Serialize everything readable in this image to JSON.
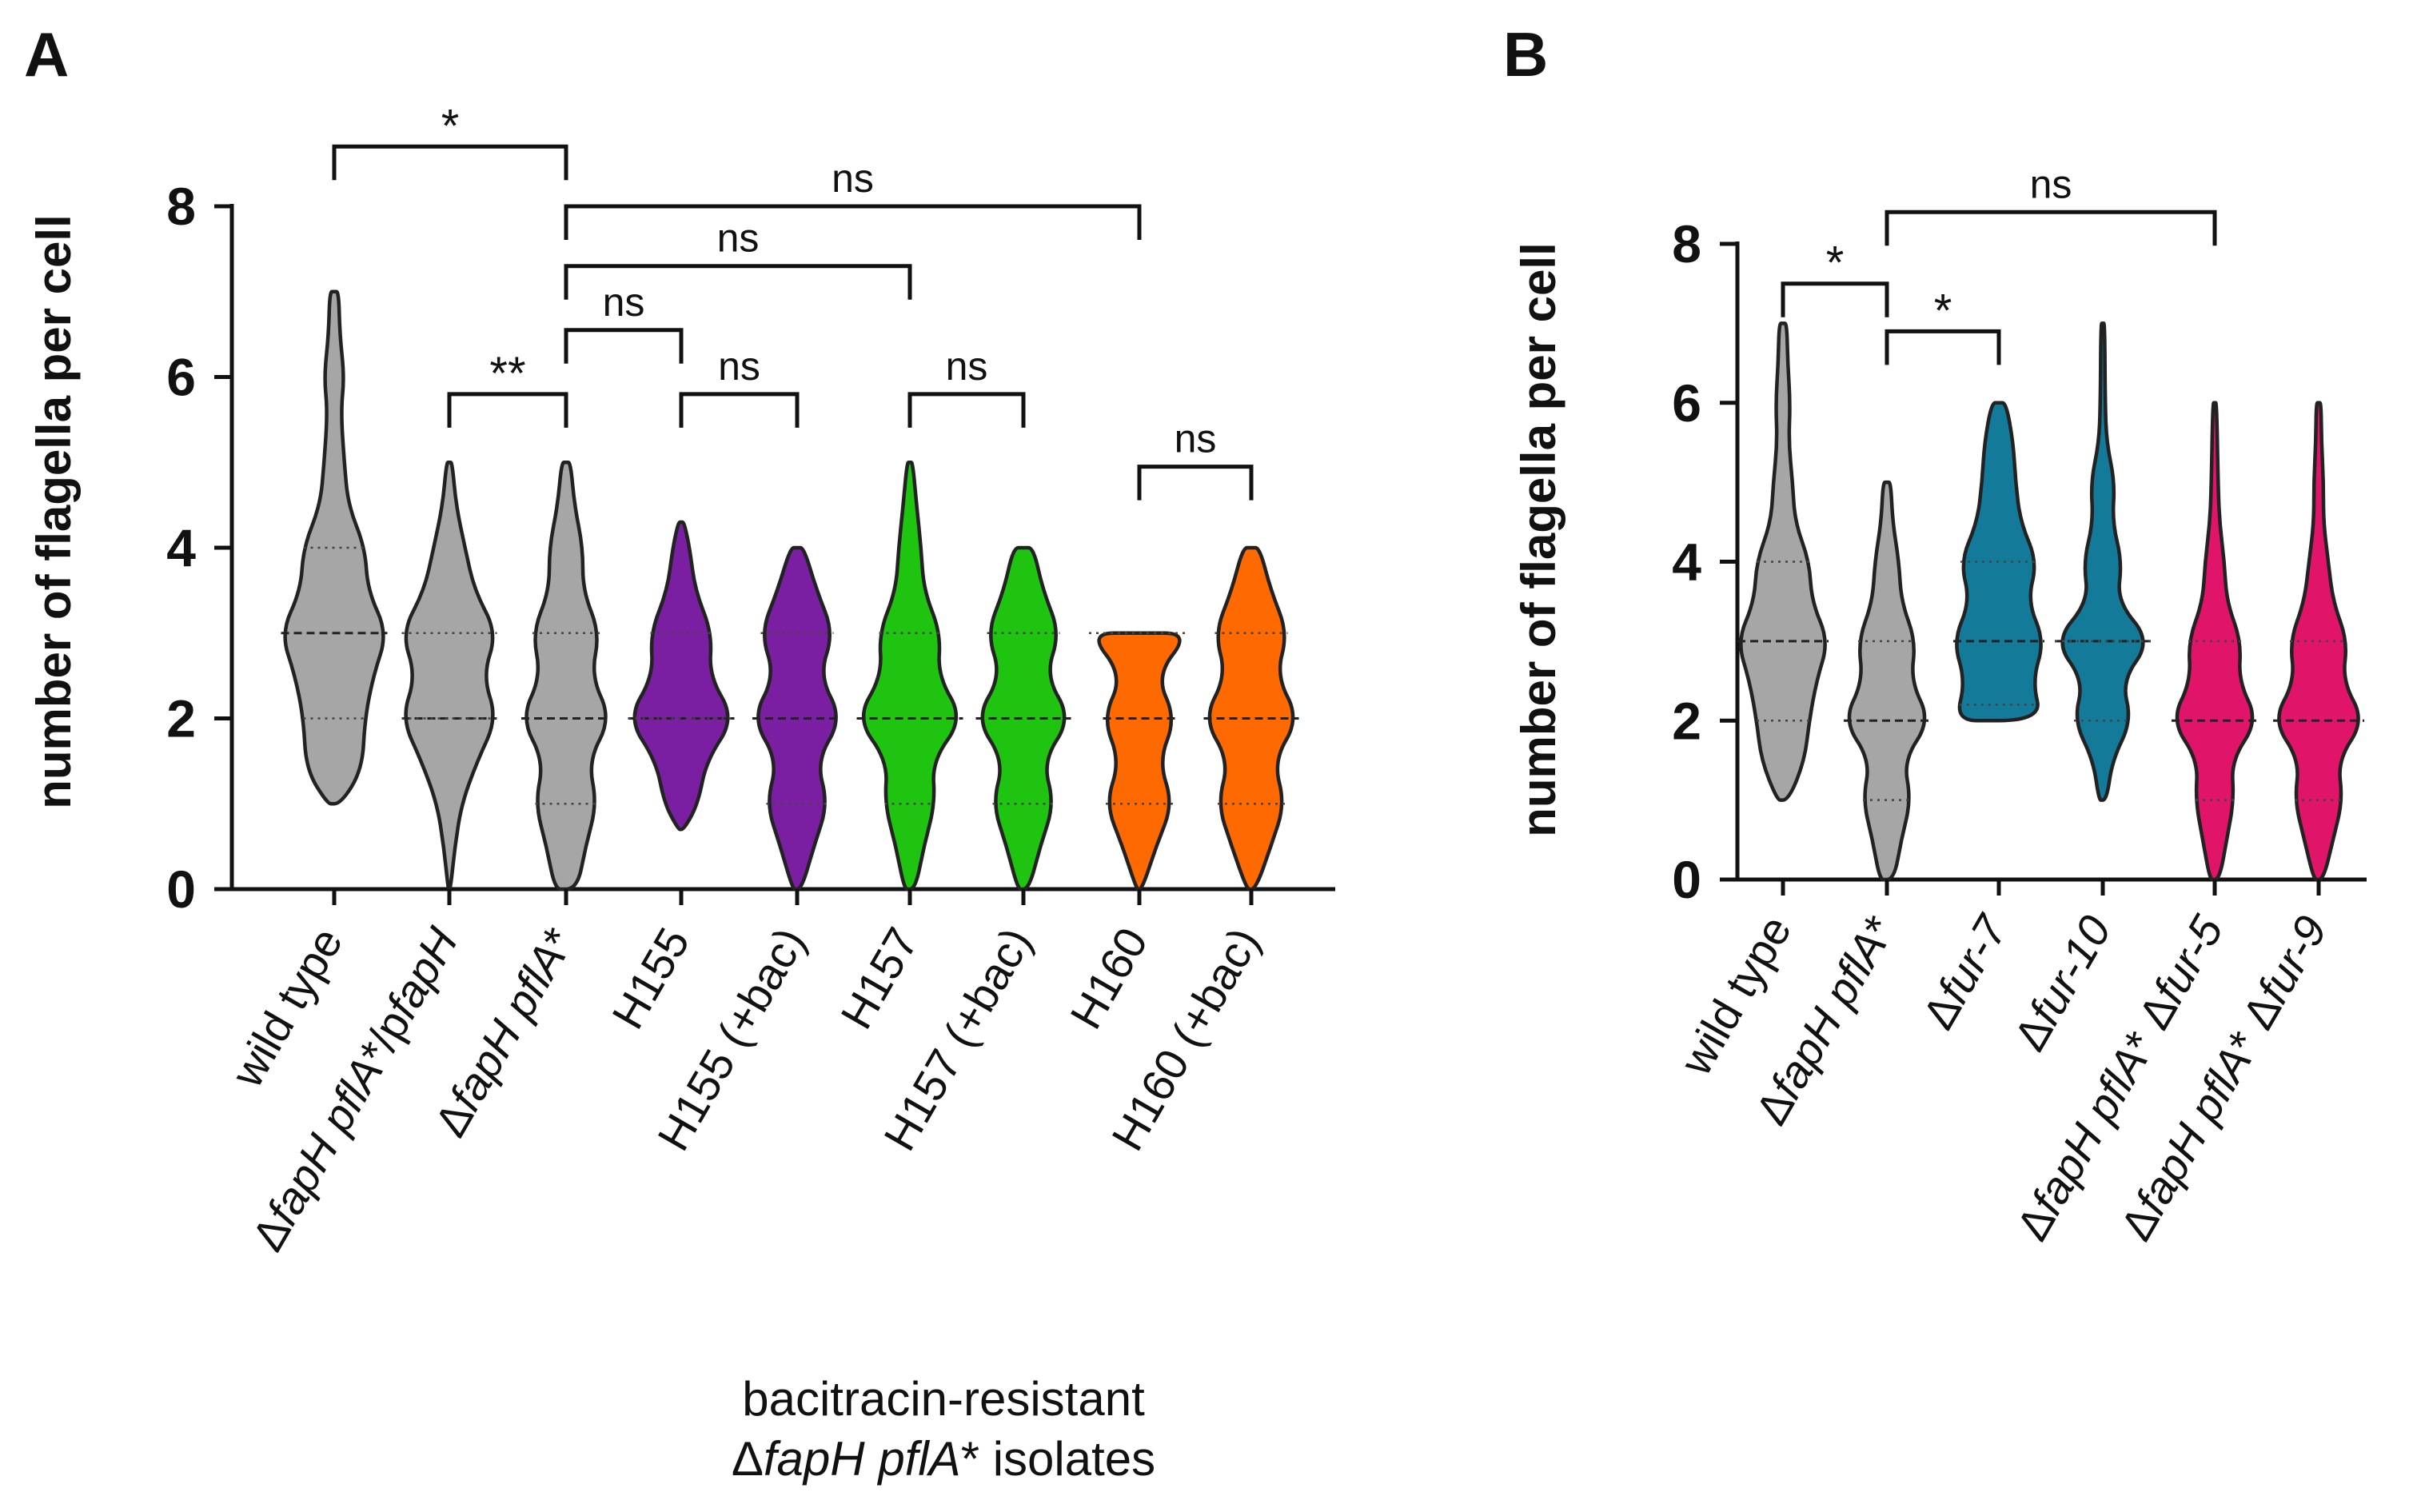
{
  "chart_data": [
    {
      "panel": "A",
      "type": "violin",
      "ylabel": "number of flagella per cell",
      "ylim": [
        0,
        8
      ],
      "yticks": [
        "0",
        "2",
        "4",
        "6",
        "8"
      ],
      "xlabel_lines": [
        "bacitracin-resistant",
        "ΔfapH pflA* isolates"
      ],
      "groups": [
        {
          "label": "wild type",
          "color": "#a6a6a6",
          "min": 1,
          "max": 7,
          "median": 3,
          "q1": 2,
          "q3": 4,
          "profile": [
            [
              1,
              0.12
            ],
            [
              1.4,
              0.5
            ],
            [
              2,
              0.55
            ],
            [
              2.5,
              0.7
            ],
            [
              3,
              0.95
            ],
            [
              3.5,
              0.6
            ],
            [
              4,
              0.55
            ],
            [
              4.5,
              0.25
            ],
            [
              5,
              0.18
            ],
            [
              5.6,
              0.12
            ],
            [
              6,
              0.18
            ],
            [
              6.5,
              0.1
            ],
            [
              7,
              0.08
            ]
          ]
        },
        {
          "label": "ΔfapH pflA*/pfapH",
          "color": "#a6a6a6",
          "min": 0,
          "max": 5,
          "median": 2,
          "q1": 2,
          "q3": 3,
          "profile": [
            [
              0,
              0.02
            ],
            [
              0.5,
              0.1
            ],
            [
              1,
              0.22
            ],
            [
              1.5,
              0.5
            ],
            [
              2,
              0.85
            ],
            [
              2.5,
              0.6
            ],
            [
              3,
              0.85
            ],
            [
              3.5,
              0.45
            ],
            [
              4,
              0.28
            ],
            [
              4.5,
              0.12
            ],
            [
              5,
              0.05
            ]
          ]
        },
        {
          "label": "ΔfapH pflA*",
          "color": "#a6a6a6",
          "min": 0,
          "max": 5,
          "median": 2,
          "q1": 1,
          "q3": 3,
          "profile": [
            [
              0,
              0.2
            ],
            [
              0.5,
              0.35
            ],
            [
              1,
              0.55
            ],
            [
              1.5,
              0.4
            ],
            [
              2,
              0.8
            ],
            [
              2.5,
              0.45
            ],
            [
              3,
              0.6
            ],
            [
              3.5,
              0.3
            ],
            [
              4,
              0.3
            ],
            [
              4.5,
              0.15
            ],
            [
              5,
              0.08
            ]
          ]
        },
        {
          "label": "H155",
          "color": "#7a1fa2",
          "min": 1,
          "max": 4,
          "median": 2,
          "q1": 2,
          "q3": 3,
          "profile": [
            [
              0.7,
              0.05
            ],
            [
              1,
              0.3
            ],
            [
              1.5,
              0.45
            ],
            [
              2,
              0.95
            ],
            [
              2.5,
              0.5
            ],
            [
              3,
              0.55
            ],
            [
              3.5,
              0.25
            ],
            [
              4,
              0.15
            ],
            [
              4.3,
              0.05
            ]
          ]
        },
        {
          "label": "H155 (+bac)",
          "color": "#7a1fa2",
          "min": 0,
          "max": 4,
          "median": 2,
          "q1": 1,
          "q3": 3,
          "profile": [
            [
              0,
              0.08
            ],
            [
              0.5,
              0.3
            ],
            [
              1,
              0.55
            ],
            [
              1.5,
              0.35
            ],
            [
              2,
              0.8
            ],
            [
              2.5,
              0.4
            ],
            [
              3,
              0.65
            ],
            [
              3.5,
              0.35
            ],
            [
              4,
              0.12
            ]
          ]
        },
        {
          "label": "H157",
          "color": "#1ec410",
          "min": 0,
          "max": 5,
          "median": 2,
          "q1": 1,
          "q3": 3,
          "profile": [
            [
              0,
              0.1
            ],
            [
              0.5,
              0.25
            ],
            [
              1,
              0.45
            ],
            [
              1.5,
              0.4
            ],
            [
              2,
              0.95
            ],
            [
              2.5,
              0.5
            ],
            [
              3,
              0.55
            ],
            [
              3.5,
              0.25
            ],
            [
              4,
              0.2
            ],
            [
              4.5,
              0.12
            ],
            [
              5,
              0.05
            ]
          ]
        },
        {
          "label": "H157 (+bac)",
          "color": "#1ec410",
          "min": 0,
          "max": 4,
          "median": 2,
          "q1": 1,
          "q3": 3,
          "profile": [
            [
              0,
              0.1
            ],
            [
              0.5,
              0.3
            ],
            [
              1,
              0.55
            ],
            [
              1.5,
              0.35
            ],
            [
              2,
              0.85
            ],
            [
              2.5,
              0.4
            ],
            [
              3,
              0.65
            ],
            [
              3.5,
              0.35
            ],
            [
              4,
              0.18
            ]
          ]
        },
        {
          "label": "H160",
          "color": "#ff6a00",
          "min": 0,
          "max": 3,
          "median": 2,
          "q1": 1,
          "q3": 3,
          "profile": [
            [
              0,
              0.05
            ],
            [
              0.5,
              0.3
            ],
            [
              1,
              0.6
            ],
            [
              1.5,
              0.35
            ],
            [
              2,
              0.65
            ],
            [
              2.5,
              0.3
            ],
            [
              3,
              0.9
            ]
          ]
        },
        {
          "label": "H160 (+bac)",
          "color": "#ff6a00",
          "min": 0,
          "max": 4,
          "median": 2,
          "q1": 1,
          "q3": 3,
          "profile": [
            [
              0,
              0.08
            ],
            [
              0.5,
              0.35
            ],
            [
              1,
              0.6
            ],
            [
              1.5,
              0.4
            ],
            [
              2,
              0.85
            ],
            [
              2.5,
              0.45
            ],
            [
              3,
              0.65
            ],
            [
              3.5,
              0.35
            ],
            [
              4,
              0.15
            ]
          ]
        }
      ],
      "comparisons": [
        {
          "from": 0,
          "to": 2,
          "y": 8.7,
          "label": "*"
        },
        {
          "from": 2,
          "to": 7,
          "y": 8.0,
          "label": "ns"
        },
        {
          "from": 2,
          "to": 5,
          "y": 7.3,
          "label": "ns"
        },
        {
          "from": 2,
          "to": 3,
          "y": 6.55,
          "label": "ns"
        },
        {
          "from": 1,
          "to": 2,
          "y": 5.8,
          "label": "**"
        },
        {
          "from": 3,
          "to": 4,
          "y": 5.8,
          "label": "ns"
        },
        {
          "from": 5,
          "to": 6,
          "y": 5.8,
          "label": "ns"
        },
        {
          "from": 7,
          "to": 8,
          "y": 4.95,
          "label": "ns"
        }
      ]
    },
    {
      "panel": "B",
      "type": "violin",
      "ylabel": "number of flagella per cell",
      "ylim": [
        0,
        8
      ],
      "yticks": [
        "0",
        "2",
        "4",
        "6",
        "8"
      ],
      "groups": [
        {
          "label": "wild type",
          "color": "#a6a6a6",
          "min": 1,
          "max": 7,
          "median": 3,
          "q1": 2,
          "q3": 4,
          "profile": [
            [
              1,
              0.12
            ],
            [
              1.5,
              0.45
            ],
            [
              2,
              0.55
            ],
            [
              2.5,
              0.7
            ],
            [
              3,
              0.95
            ],
            [
              3.5,
              0.6
            ],
            [
              4,
              0.55
            ],
            [
              4.5,
              0.25
            ],
            [
              5,
              0.2
            ],
            [
              5.5,
              0.12
            ],
            [
              6,
              0.15
            ],
            [
              6.5,
              0.1
            ],
            [
              7,
              0.08
            ]
          ]
        },
        {
          "label": "ΔfapH pflA*",
          "color": "#a6a6a6",
          "min": 0,
          "max": 5,
          "median": 2,
          "q1": 1,
          "q3": 3,
          "profile": [
            [
              0,
              0.15
            ],
            [
              0.5,
              0.3
            ],
            [
              1,
              0.5
            ],
            [
              1.5,
              0.35
            ],
            [
              2,
              0.9
            ],
            [
              2.5,
              0.5
            ],
            [
              3,
              0.6
            ],
            [
              3.5,
              0.3
            ],
            [
              4,
              0.25
            ],
            [
              4.5,
              0.12
            ],
            [
              5,
              0.08
            ]
          ]
        },
        {
          "label": "Δfur-7",
          "color": "#137a9a",
          "min": 2,
          "max": 6,
          "median": 3,
          "q1": 2.2,
          "q3": 4,
          "profile": [
            [
              2,
              0.9
            ],
            [
              2.5,
              0.7
            ],
            [
              3,
              0.95
            ],
            [
              3.5,
              0.6
            ],
            [
              4,
              0.8
            ],
            [
              4.5,
              0.45
            ],
            [
              5,
              0.35
            ],
            [
              5.5,
              0.3
            ],
            [
              6,
              0.15
            ]
          ]
        },
        {
          "label": "Δfur-10",
          "color": "#137a9a",
          "min": 1,
          "max": 7,
          "median": 3,
          "q1": 2,
          "q3": 3,
          "profile": [
            [
              1,
              0.08
            ],
            [
              1.5,
              0.2
            ],
            [
              2,
              0.6
            ],
            [
              2.5,
              0.4
            ],
            [
              3,
              1.0
            ],
            [
              3.5,
              0.3
            ],
            [
              4,
              0.4
            ],
            [
              4.5,
              0.2
            ],
            [
              5,
              0.25
            ],
            [
              5.5,
              0.08
            ],
            [
              6,
              0.05
            ],
            [
              7,
              0.04
            ]
          ]
        },
        {
          "label": "ΔfapH pflA* Δfur-5",
          "color": "#e01468",
          "min": 0,
          "max": 6,
          "median": 2,
          "q1": 1,
          "q3": 3,
          "profile": [
            [
              0,
              0.1
            ],
            [
              0.5,
              0.25
            ],
            [
              1,
              0.4
            ],
            [
              1.5,
              0.35
            ],
            [
              2,
              0.9
            ],
            [
              2.5,
              0.5
            ],
            [
              3,
              0.55
            ],
            [
              3.5,
              0.25
            ],
            [
              4,
              0.2
            ],
            [
              4.5,
              0.1
            ],
            [
              5,
              0.07
            ],
            [
              6,
              0.04
            ]
          ]
        },
        {
          "label": "ΔfapH pflA* Δfur-9",
          "color": "#e01468",
          "min": 0,
          "max": 6,
          "median": 2,
          "q1": 1,
          "q3": 3,
          "profile": [
            [
              0,
              0.1
            ],
            [
              0.5,
              0.3
            ],
            [
              1,
              0.5
            ],
            [
              1.5,
              0.4
            ],
            [
              2,
              0.95
            ],
            [
              2.5,
              0.5
            ],
            [
              3,
              0.6
            ],
            [
              3.5,
              0.3
            ],
            [
              4,
              0.2
            ],
            [
              4.5,
              0.1
            ],
            [
              5,
              0.1
            ],
            [
              5.5,
              0.06
            ],
            [
              6,
              0.05
            ]
          ]
        }
      ],
      "comparisons": [
        {
          "from": 0,
          "to": 1,
          "y": 7.5,
          "label": "*"
        },
        {
          "from": 1,
          "to": 4,
          "y": 8.4,
          "label": "ns"
        },
        {
          "from": 1,
          "to": 2,
          "y": 6.9,
          "label": "*"
        }
      ]
    }
  ]
}
